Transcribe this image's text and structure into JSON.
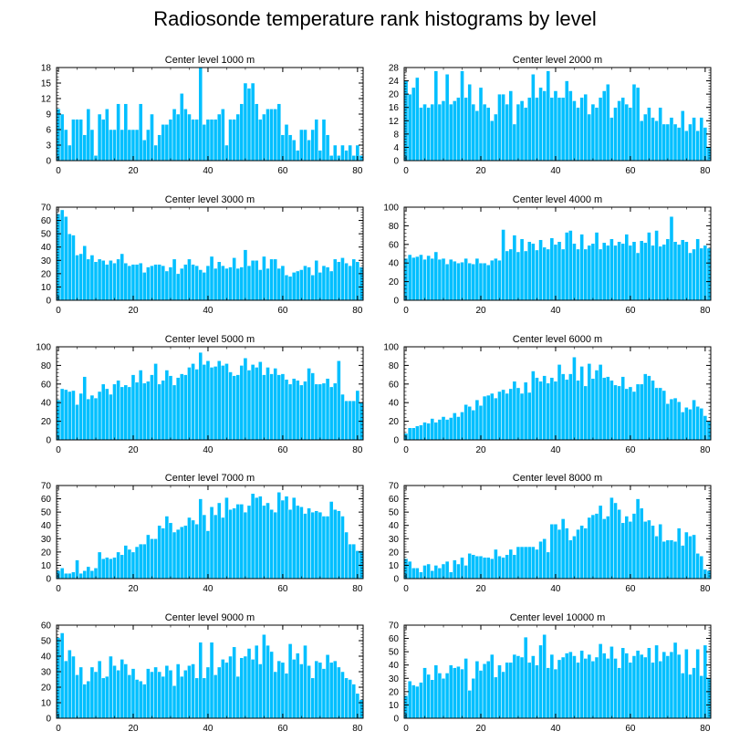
{
  "figure": {
    "title": "Radiosonde temperature rank histograms by level",
    "bar_color": "#00bfff",
    "bar_edge_color": "#ffffff",
    "axis_color": "#000000"
  },
  "chart_data": [
    {
      "type": "bar",
      "title": "Center level 1000 m",
      "ylim": [
        0,
        18
      ],
      "yticks": [
        0,
        3,
        6,
        9,
        12,
        15,
        18
      ],
      "xlim": [
        -0.5,
        81.5
      ],
      "xticks": [
        0,
        20,
        40,
        60,
        80
      ],
      "values": [
        10,
        9,
        6,
        3,
        8,
        8,
        8,
        5,
        10,
        6,
        1,
        9,
        8,
        10,
        6,
        6,
        11,
        6,
        11,
        6,
        6,
        6,
        11,
        4,
        6,
        9,
        3,
        5,
        7,
        7,
        8,
        10,
        9,
        13,
        10,
        9,
        8,
        8,
        18,
        7,
        8,
        8,
        8,
        9,
        10,
        3,
        8,
        8,
        9,
        11,
        15,
        14,
        15,
        11,
        8,
        9,
        10,
        10,
        10,
        11,
        5,
        7,
        5,
        4,
        2,
        6,
        6,
        4,
        6,
        8,
        2,
        8,
        5,
        1,
        3,
        1,
        3,
        2,
        3,
        1,
        3,
        1
      ]
    },
    {
      "type": "bar",
      "title": "Center level 2000 m",
      "ylim": [
        0,
        28
      ],
      "yticks": [
        0,
        4,
        8,
        12,
        16,
        20,
        24,
        28
      ],
      "xlim": [
        -0.5,
        81.5
      ],
      "xticks": [
        0,
        20,
        40,
        60,
        80
      ],
      "values": [
        24,
        20,
        22,
        25,
        16,
        17,
        16,
        17,
        27,
        17,
        18,
        26,
        17,
        18,
        19,
        27,
        19,
        23,
        17,
        15,
        22,
        17,
        16,
        12,
        14,
        20,
        20,
        17,
        21,
        11,
        17,
        18,
        16,
        19,
        26,
        19,
        22,
        21,
        27,
        19,
        21,
        19,
        19,
        24,
        21,
        18,
        16,
        19,
        20,
        14,
        17,
        16,
        19,
        21,
        23,
        13,
        16,
        18,
        19,
        17,
        16,
        23,
        22,
        12,
        14,
        16,
        13,
        12,
        16,
        11,
        11,
        13,
        11,
        10,
        15,
        9,
        11,
        13,
        9,
        13,
        10,
        4
      ]
    },
    {
      "type": "bar",
      "title": "Center level 3000 m",
      "ylim": [
        0,
        70
      ],
      "yticks": [
        0,
        10,
        20,
        30,
        40,
        50,
        60,
        70
      ],
      "xlim": [
        -0.5,
        81.5
      ],
      "xticks": [
        0,
        20,
        40,
        60,
        80
      ],
      "values": [
        65,
        68,
        63,
        50,
        49,
        34,
        35,
        41,
        31,
        34,
        29,
        31,
        30,
        27,
        30,
        28,
        31,
        35,
        28,
        26,
        27,
        27,
        28,
        21,
        25,
        26,
        27,
        27,
        26,
        22,
        25,
        31,
        20,
        24,
        27,
        31,
        27,
        26,
        23,
        21,
        26,
        33,
        24,
        29,
        26,
        24,
        25,
        32,
        24,
        25,
        38,
        26,
        30,
        30,
        23,
        33,
        24,
        31,
        31,
        24,
        26,
        19,
        18,
        21,
        22,
        23,
        26,
        25,
        19,
        30,
        21,
        26,
        25,
        22,
        31,
        29,
        32,
        28,
        26,
        31,
        29,
        25
      ]
    },
    {
      "type": "bar",
      "title": "Center level 4000 m",
      "ylim": [
        0,
        100
      ],
      "yticks": [
        0,
        20,
        40,
        60,
        80,
        100
      ],
      "xlim": [
        -0.5,
        81.5
      ],
      "xticks": [
        0,
        20,
        40,
        60,
        80
      ],
      "values": [
        45,
        49,
        46,
        47,
        49,
        44,
        48,
        45,
        52,
        44,
        45,
        39,
        44,
        42,
        40,
        41,
        45,
        40,
        39,
        45,
        40,
        40,
        38,
        43,
        45,
        43,
        76,
        53,
        55,
        70,
        52,
        66,
        53,
        63,
        61,
        54,
        65,
        57,
        55,
        67,
        60,
        63,
        55,
        73,
        75,
        61,
        55,
        71,
        55,
        59,
        61,
        73,
        55,
        62,
        59,
        66,
        59,
        63,
        61,
        71,
        59,
        63,
        51,
        64,
        62,
        73,
        59,
        75,
        58,
        60,
        66,
        90,
        63,
        60,
        65,
        63,
        51,
        55,
        66,
        56,
        59,
        56
      ]
    },
    {
      "type": "bar",
      "title": "Center level 5000 m",
      "ylim": [
        0,
        100
      ],
      "yticks": [
        0,
        20,
        40,
        60,
        80,
        100
      ],
      "xlim": [
        -0.5,
        81.5
      ],
      "xticks": [
        0,
        20,
        40,
        60,
        80
      ],
      "values": [
        43,
        55,
        54,
        52,
        53,
        38,
        50,
        68,
        44,
        48,
        45,
        52,
        60,
        55,
        49,
        60,
        64,
        57,
        59,
        57,
        70,
        62,
        75,
        61,
        63,
        70,
        82,
        60,
        64,
        75,
        69,
        59,
        67,
        71,
        70,
        78,
        82,
        76,
        94,
        81,
        85,
        78,
        79,
        85,
        80,
        82,
        73,
        69,
        70,
        80,
        88,
        75,
        81,
        78,
        84,
        70,
        78,
        71,
        77,
        70,
        71,
        65,
        60,
        66,
        64,
        59,
        63,
        77,
        72,
        60,
        60,
        61,
        66,
        57,
        61,
        85,
        49,
        42,
        42,
        42,
        53,
        40
      ]
    },
    {
      "type": "bar",
      "title": "Center level 6000 m",
      "ylim": [
        0,
        100
      ],
      "yticks": [
        0,
        20,
        40,
        60,
        80,
        100
      ],
      "xlim": [
        -0.5,
        81.5
      ],
      "xticks": [
        0,
        20,
        40,
        60,
        80
      ],
      "values": [
        7,
        13,
        13,
        15,
        16,
        19,
        18,
        23,
        19,
        22,
        25,
        22,
        24,
        29,
        25,
        30,
        38,
        36,
        32,
        43,
        37,
        47,
        48,
        50,
        45,
        52,
        54,
        50,
        55,
        63,
        56,
        50,
        62,
        51,
        74,
        67,
        63,
        69,
        61,
        67,
        63,
        81,
        71,
        65,
        71,
        89,
        64,
        79,
        58,
        82,
        66,
        75,
        81,
        67,
        68,
        64,
        59,
        58,
        68,
        55,
        57,
        52,
        60,
        60,
        71,
        69,
        64,
        56,
        56,
        53,
        39,
        44,
        45,
        41,
        30,
        35,
        33,
        43,
        36,
        34,
        26,
        20
      ]
    },
    {
      "type": "bar",
      "title": "Center level 7000 m",
      "ylim": [
        0,
        70
      ],
      "yticks": [
        0,
        10,
        20,
        30,
        40,
        50,
        60,
        70
      ],
      "xlim": [
        -0.5,
        81.5
      ],
      "xticks": [
        0,
        20,
        40,
        60,
        80
      ],
      "values": [
        6,
        8,
        4,
        4,
        5,
        14,
        4,
        6,
        9,
        6,
        8,
        20,
        15,
        16,
        15,
        16,
        20,
        18,
        25,
        22,
        20,
        24,
        26,
        26,
        33,
        30,
        30,
        40,
        38,
        47,
        42,
        35,
        37,
        39,
        40,
        46,
        44,
        41,
        60,
        48,
        36,
        54,
        48,
        57,
        46,
        61,
        52,
        53,
        56,
        56,
        50,
        55,
        64,
        61,
        62,
        55,
        57,
        52,
        50,
        65,
        59,
        62,
        52,
        61,
        55,
        54,
        49,
        53,
        50,
        51,
        50,
        47,
        47,
        58,
        52,
        51,
        47,
        35,
        26,
        26,
        21,
        21
      ]
    },
    {
      "type": "bar",
      "title": "Center level 8000 m",
      "ylim": [
        0,
        70
      ],
      "yticks": [
        0,
        10,
        20,
        30,
        40,
        50,
        60,
        70
      ],
      "xlim": [
        -0.5,
        81.5
      ],
      "xticks": [
        0,
        20,
        40,
        60,
        80
      ],
      "values": [
        15,
        13,
        8,
        8,
        5,
        10,
        11,
        6,
        10,
        8,
        11,
        13,
        5,
        14,
        11,
        16,
        10,
        19,
        18,
        17,
        17,
        16,
        16,
        15,
        22,
        17,
        16,
        18,
        22,
        18,
        24,
        24,
        24,
        24,
        24,
        22,
        28,
        30,
        20,
        41,
        41,
        37,
        45,
        38,
        29,
        32,
        37,
        40,
        38,
        46,
        48,
        49,
        55,
        45,
        47,
        61,
        57,
        52,
        42,
        47,
        43,
        49,
        60,
        53,
        43,
        44,
        40,
        32,
        41,
        28,
        29,
        29,
        28,
        38,
        25,
        35,
        32,
        33,
        19,
        17,
        7,
        6
      ]
    },
    {
      "type": "bar",
      "title": "Center level 9000 m",
      "ylim": [
        0,
        60
      ],
      "yticks": [
        0,
        10,
        20,
        30,
        40,
        50,
        60
      ],
      "xlim": [
        -0.5,
        81.5
      ],
      "xticks": [
        0,
        20,
        40,
        60,
        80
      ],
      "values": [
        52,
        55,
        37,
        44,
        40,
        28,
        33,
        22,
        24,
        33,
        30,
        37,
        26,
        27,
        40,
        34,
        31,
        38,
        35,
        28,
        32,
        25,
        24,
        22,
        32,
        30,
        33,
        30,
        27,
        34,
        31,
        21,
        35,
        27,
        31,
        34,
        35,
        26,
        49,
        26,
        33,
        49,
        28,
        33,
        38,
        36,
        40,
        46,
        27,
        39,
        40,
        45,
        38,
        47,
        35,
        54,
        47,
        43,
        30,
        37,
        36,
        29,
        48,
        38,
        42,
        35,
        47,
        34,
        26,
        37,
        36,
        32,
        41,
        36,
        37,
        33,
        30,
        26,
        25,
        22,
        16,
        12
      ]
    },
    {
      "type": "bar",
      "title": "Center level 10000 m",
      "ylim": [
        0,
        70
      ],
      "yticks": [
        0,
        10,
        20,
        30,
        40,
        50,
        60,
        70
      ],
      "xlim": [
        -0.5,
        81.5
      ],
      "xticks": [
        0,
        20,
        40,
        60,
        80
      ],
      "values": [
        17,
        28,
        25,
        24,
        27,
        38,
        33,
        29,
        40,
        34,
        30,
        34,
        40,
        38,
        39,
        37,
        45,
        21,
        30,
        43,
        36,
        41,
        43,
        48,
        31,
        40,
        35,
        42,
        42,
        48,
        47,
        46,
        61,
        42,
        47,
        40,
        55,
        63,
        38,
        48,
        37,
        44,
        46,
        49,
        50,
        47,
        42,
        51,
        45,
        48,
        43,
        46,
        56,
        49,
        45,
        54,
        45,
        38,
        53,
        49,
        42,
        47,
        51,
        48,
        46,
        53,
        42,
        55,
        43,
        50,
        47,
        50,
        57,
        48,
        34,
        52,
        33,
        38,
        52,
        32,
        55,
        30
      ]
    }
  ]
}
